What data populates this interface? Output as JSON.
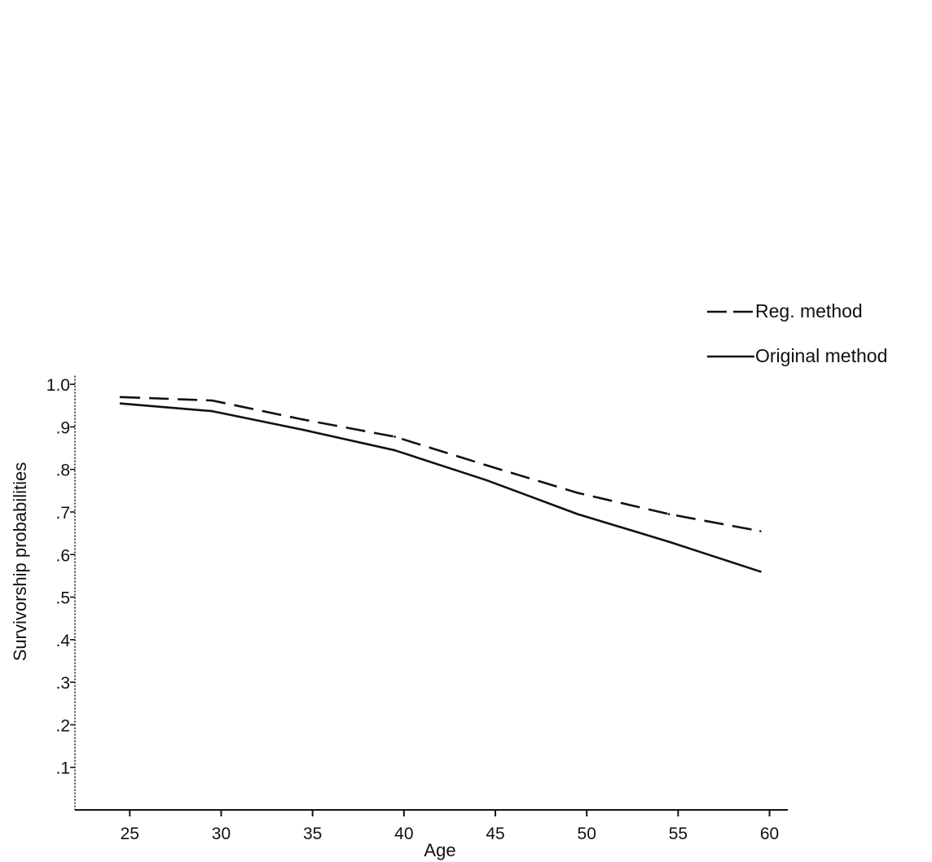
{
  "chart_data": {
    "type": "line",
    "title": "",
    "xlabel": "Age",
    "ylabel": "Survivorship probabilities",
    "x": [
      24.5,
      29.5,
      34.5,
      39.5,
      44.5,
      49.5,
      54.5,
      59.5
    ],
    "xlim": [
      22,
      61
    ],
    "ylim": [
      0,
      1.05
    ],
    "x_ticks": [
      {
        "value": 25,
        "label": "25"
      },
      {
        "value": 30,
        "label": "30"
      },
      {
        "value": 35,
        "label": "35"
      },
      {
        "value": 40,
        "label": "40"
      },
      {
        "value": 45,
        "label": "45"
      },
      {
        "value": 50,
        "label": "50"
      },
      {
        "value": 55,
        "label": "55"
      },
      {
        "value": 60,
        "label": "60"
      }
    ],
    "y_ticks": [
      {
        "value": 1.0,
        "label": "1.0"
      },
      {
        "value": 0.9,
        "label": ".9"
      },
      {
        "value": 0.8,
        "label": ".8"
      },
      {
        "value": 0.7,
        "label": ".7"
      },
      {
        "value": 0.6,
        "label": ".6"
      },
      {
        "value": 0.5,
        "label": ".5"
      },
      {
        "value": 0.4,
        "label": ".4"
      },
      {
        "value": 0.3,
        "label": ".3"
      },
      {
        "value": 0.2,
        "label": ".2"
      },
      {
        "value": 0.1,
        "label": ".1"
      }
    ],
    "series": [
      {
        "name": "Reg. method",
        "style": "dashed",
        "color": "#111111",
        "values": [
          0.97,
          0.962,
          0.917,
          0.877,
          0.81,
          0.745,
          0.695,
          0.655
        ]
      },
      {
        "name": "Original method",
        "style": "solid",
        "color": "#111111",
        "values": [
          0.955,
          0.937,
          0.893,
          0.845,
          0.775,
          0.695,
          0.63,
          0.56
        ]
      }
    ],
    "grid": false,
    "legend_position": "top-right"
  }
}
